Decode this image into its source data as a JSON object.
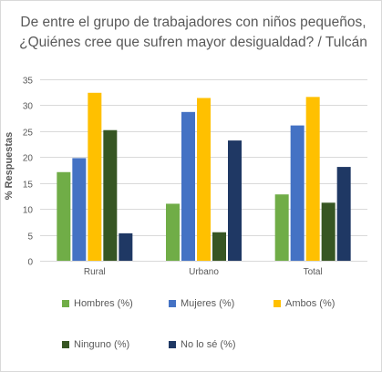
{
  "chart_data": {
    "type": "bar",
    "title_lines": [
      "De entre el grupo de trabajadores con niños pequeños,",
      "¿Quiénes cree que sufren mayor desigualdad? / Tulcán"
    ],
    "xlabel": "",
    "ylabel": "% Respuestas",
    "categories": [
      "Rural",
      "Urbano",
      "Total"
    ],
    "ylim": [
      0,
      35
    ],
    "yticks": [
      0,
      5,
      10,
      15,
      20,
      25,
      30,
      35
    ],
    "grid": true,
    "legend_position": "bottom",
    "series": [
      {
        "name": "Hombres (%)",
        "color": "#70ad47",
        "values": [
          17.1,
          11.0,
          12.8
        ]
      },
      {
        "name": "Mujeres (%)",
        "color": "#4472c4",
        "values": [
          19.8,
          28.7,
          26.1
        ]
      },
      {
        "name": "Ambos (%)",
        "color": "#ffc000",
        "values": [
          32.4,
          31.4,
          31.6
        ]
      },
      {
        "name": "Ninguno (%)",
        "color": "#375623",
        "values": [
          25.2,
          5.5,
          11.2
        ]
      },
      {
        "name": "No lo sé (%)",
        "color": "#1f3864",
        "values": [
          5.3,
          23.2,
          18.1
        ]
      }
    ]
  }
}
